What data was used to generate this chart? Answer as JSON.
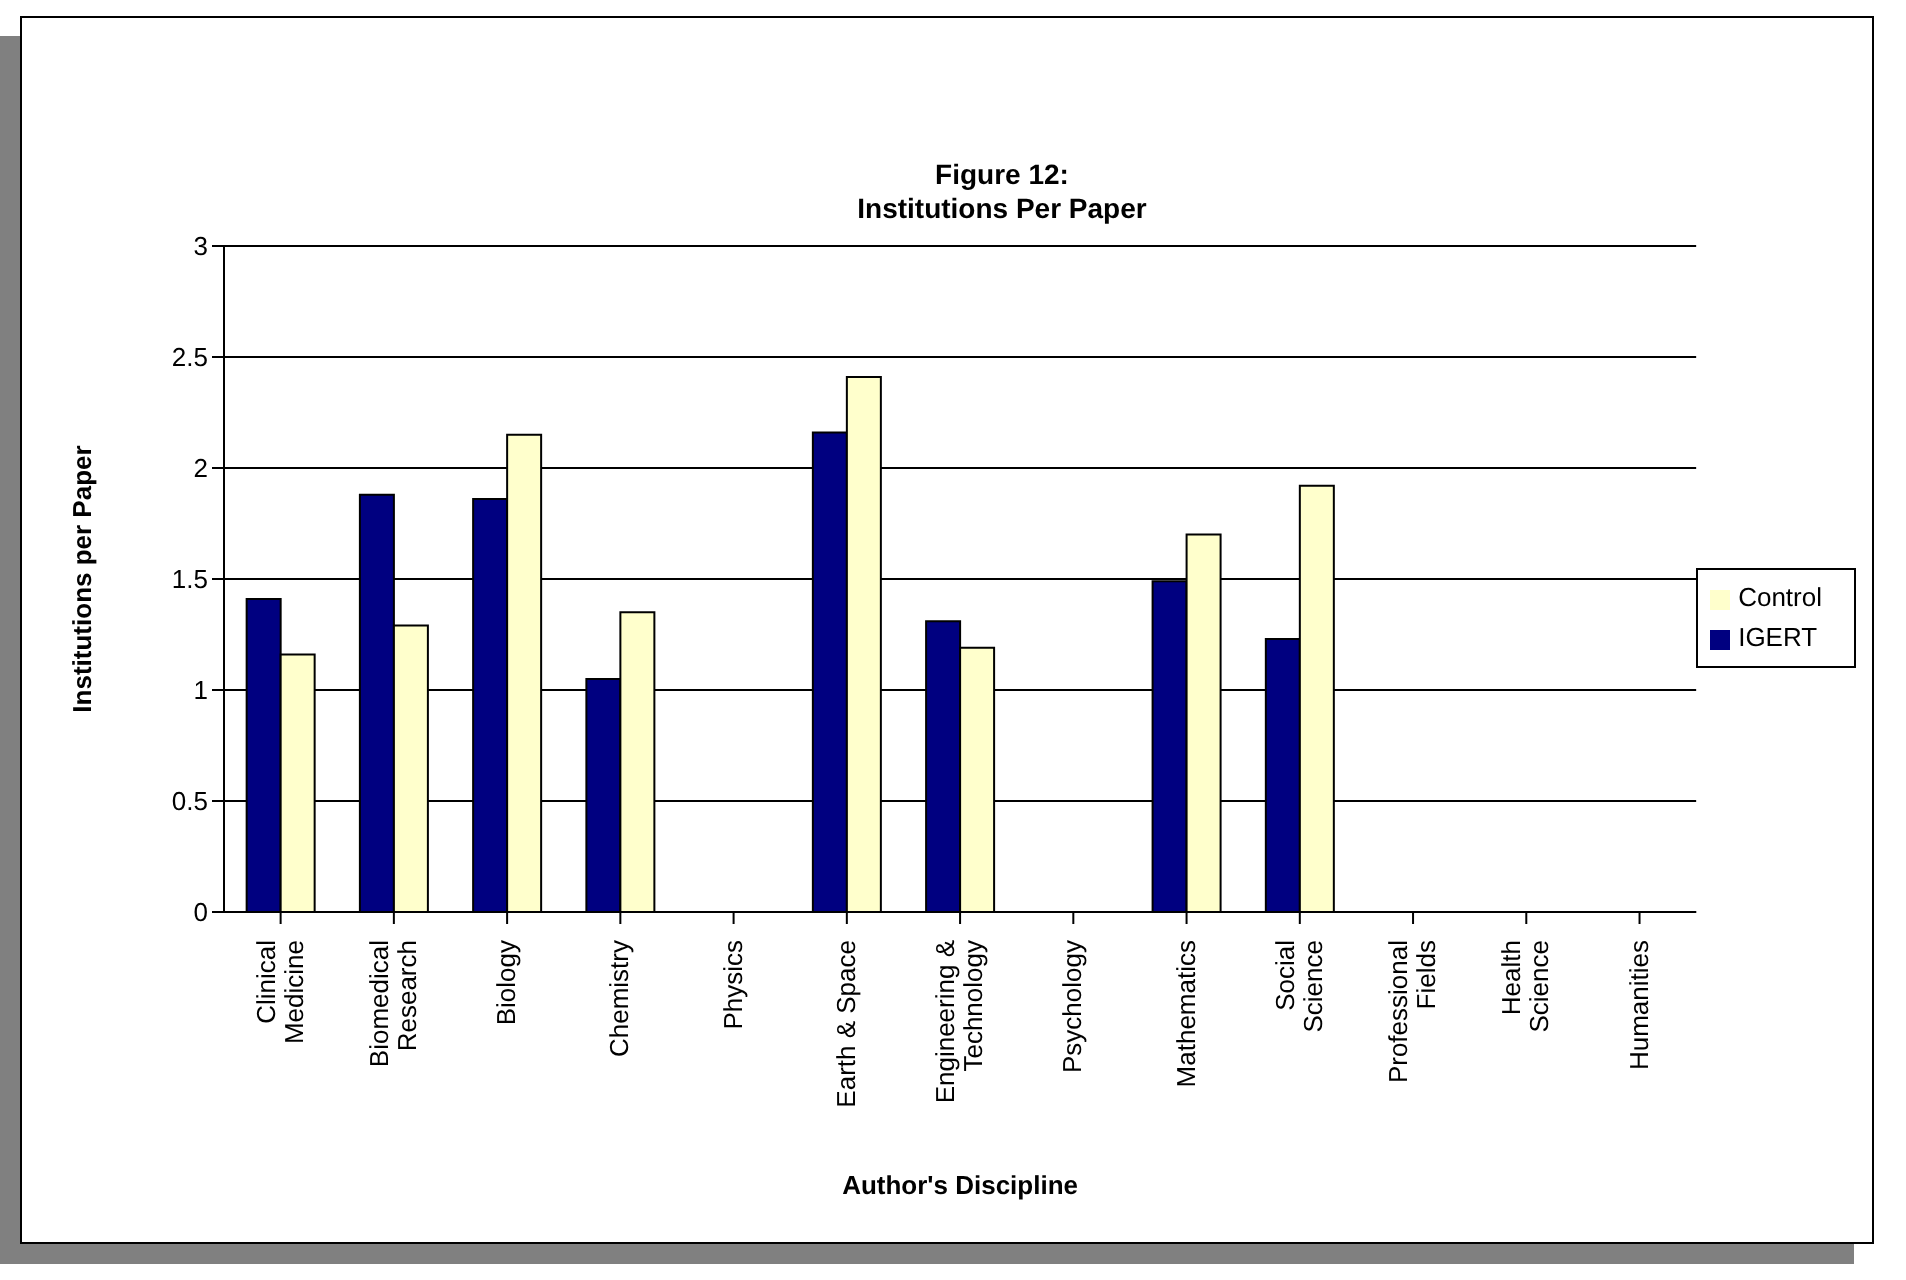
{
  "chart_data": {
    "type": "bar",
    "title": "Figure 12:",
    "subtitle": "Institutions Per Paper",
    "xlabel": "Author's Discipline",
    "ylabel": "Institutions per Paper",
    "categories": [
      "Clinical\nMedicine",
      "Biomedical\nResearch",
      "Biology",
      "Chemistry",
      "Physics",
      "Earth & Space",
      "Engineering &\nTechnology",
      "Psychology",
      "Mathematics",
      "Social\nScience",
      "Professional\nFields",
      "Health\nScience",
      "Humanities"
    ],
    "series": [
      {
        "name": "IGERT",
        "color": "#000080",
        "values": [
          1.41,
          1.88,
          1.86,
          1.05,
          null,
          2.16,
          1.31,
          null,
          1.49,
          1.23,
          null,
          null,
          null
        ]
      },
      {
        "name": "Control",
        "color": "#ffffcc",
        "values": [
          1.16,
          1.29,
          2.15,
          1.35,
          null,
          2.41,
          1.19,
          null,
          1.7,
          1.92,
          null,
          null,
          null
        ]
      }
    ],
    "ylim": [
      0,
      3
    ],
    "yticks": [
      0,
      0.5,
      1,
      1.5,
      2,
      2.5,
      3
    ],
    "grid": "y",
    "legend": "right"
  }
}
